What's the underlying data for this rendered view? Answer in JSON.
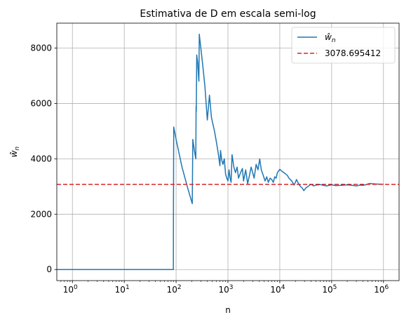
{
  "chart_data": {
    "type": "line",
    "title": "Estimativa de D em escala semi-log",
    "xlabel": "n",
    "ylabel": "ŵ",
    "ylabel_sub": "n",
    "x_scale": "log",
    "xlim": [
      0.5,
      2000000
    ],
    "ylim": [
      -400,
      8900
    ],
    "grid": true,
    "legend_position": "top-right",
    "x_ticks": [
      {
        "value": 1,
        "base": "10",
        "exp": "0"
      },
      {
        "value": 10,
        "base": "10",
        "exp": "1"
      },
      {
        "value": 100,
        "base": "10",
        "exp": "2"
      },
      {
        "value": 1000,
        "base": "10",
        "exp": "3"
      },
      {
        "value": 10000,
        "base": "10",
        "exp": "4"
      },
      {
        "value": 100000,
        "base": "10",
        "exp": "5"
      },
      {
        "value": 1000000,
        "base": "10",
        "exp": "6"
      }
    ],
    "y_ticks": [
      {
        "value": 0,
        "label": "0"
      },
      {
        "value": 2000,
        "label": "2000"
      },
      {
        "value": 4000,
        "label": "4000"
      },
      {
        "value": 6000,
        "label": "6000"
      },
      {
        "value": 8000,
        "label": "8000"
      }
    ],
    "series": [
      {
        "name": "ŵ",
        "name_sub": "n",
        "color": "#1f77b4",
        "style": "solid",
        "points": [
          [
            0.5,
            0
          ],
          [
            88,
            0
          ],
          [
            88.5,
            0
          ],
          [
            89,
            2500
          ],
          [
            90,
            5150
          ],
          [
            100,
            4700
          ],
          [
            130,
            3700
          ],
          [
            170,
            2900
          ],
          [
            205,
            2380
          ],
          [
            210,
            4700
          ],
          [
            225,
            4300
          ],
          [
            240,
            4000
          ],
          [
            243,
            5900
          ],
          [
            245,
            5700
          ],
          [
            250,
            7750
          ],
          [
            260,
            7500
          ],
          [
            270,
            7000
          ],
          [
            275,
            6800
          ],
          [
            280,
            8500
          ],
          [
            300,
            8000
          ],
          [
            330,
            7300
          ],
          [
            360,
            6600
          ],
          [
            400,
            5400
          ],
          [
            440,
            6300
          ],
          [
            480,
            5500
          ],
          [
            550,
            5000
          ],
          [
            600,
            4600
          ],
          [
            650,
            4200
          ],
          [
            700,
            3750
          ],
          [
            720,
            4300
          ],
          [
            760,
            3950
          ],
          [
            800,
            3800
          ],
          [
            850,
            4000
          ],
          [
            900,
            3450
          ],
          [
            950,
            3300
          ],
          [
            1000,
            3200
          ],
          [
            1050,
            3600
          ],
          [
            1100,
            3300
          ],
          [
            1150,
            3150
          ],
          [
            1200,
            4150
          ],
          [
            1300,
            3700
          ],
          [
            1400,
            3500
          ],
          [
            1500,
            3700
          ],
          [
            1600,
            3300
          ],
          [
            1750,
            3500
          ],
          [
            1900,
            3650
          ],
          [
            2000,
            3200
          ],
          [
            2200,
            3600
          ],
          [
            2400,
            3100
          ],
          [
            2600,
            3400
          ],
          [
            2800,
            3700
          ],
          [
            3000,
            3500
          ],
          [
            3200,
            3300
          ],
          [
            3500,
            3800
          ],
          [
            3800,
            3600
          ],
          [
            4100,
            4000
          ],
          [
            4400,
            3600
          ],
          [
            4800,
            3400
          ],
          [
            5200,
            3200
          ],
          [
            5600,
            3350
          ],
          [
            6000,
            3150
          ],
          [
            6500,
            3300
          ],
          [
            7000,
            3250
          ],
          [
            7500,
            3150
          ],
          [
            8000,
            3350
          ],
          [
            8500,
            3300
          ],
          [
            9000,
            3500
          ],
          [
            10000,
            3620
          ],
          [
            11000,
            3550
          ],
          [
            12000,
            3500
          ],
          [
            13000,
            3450
          ],
          [
            14000,
            3400
          ],
          [
            15000,
            3300
          ],
          [
            17000,
            3200
          ],
          [
            19000,
            3050
          ],
          [
            21000,
            3250
          ],
          [
            23000,
            3100
          ],
          [
            25000,
            3000
          ],
          [
            27000,
            2950
          ],
          [
            29000,
            2850
          ],
          [
            32000,
            2950
          ],
          [
            35000,
            3000
          ],
          [
            40000,
            3080
          ],
          [
            45000,
            3020
          ],
          [
            50000,
            3050
          ],
          [
            60000,
            3070
          ],
          [
            70000,
            3040
          ],
          [
            80000,
            3020
          ],
          [
            100000,
            3060
          ],
          [
            120000,
            3030
          ],
          [
            150000,
            3040
          ],
          [
            200000,
            3060
          ],
          [
            250000,
            3040
          ],
          [
            300000,
            3020
          ],
          [
            350000,
            3050
          ],
          [
            400000,
            3040
          ],
          [
            450000,
            3060
          ],
          [
            500000,
            3090
          ],
          [
            550000,
            3110
          ],
          [
            600000,
            3100
          ],
          [
            700000,
            3090
          ],
          [
            800000,
            3085
          ],
          [
            1000000,
            3080
          ]
        ]
      },
      {
        "name": "3078.695412",
        "color": "#d62728",
        "style": "dashed",
        "y": 3078.695412
      }
    ]
  }
}
